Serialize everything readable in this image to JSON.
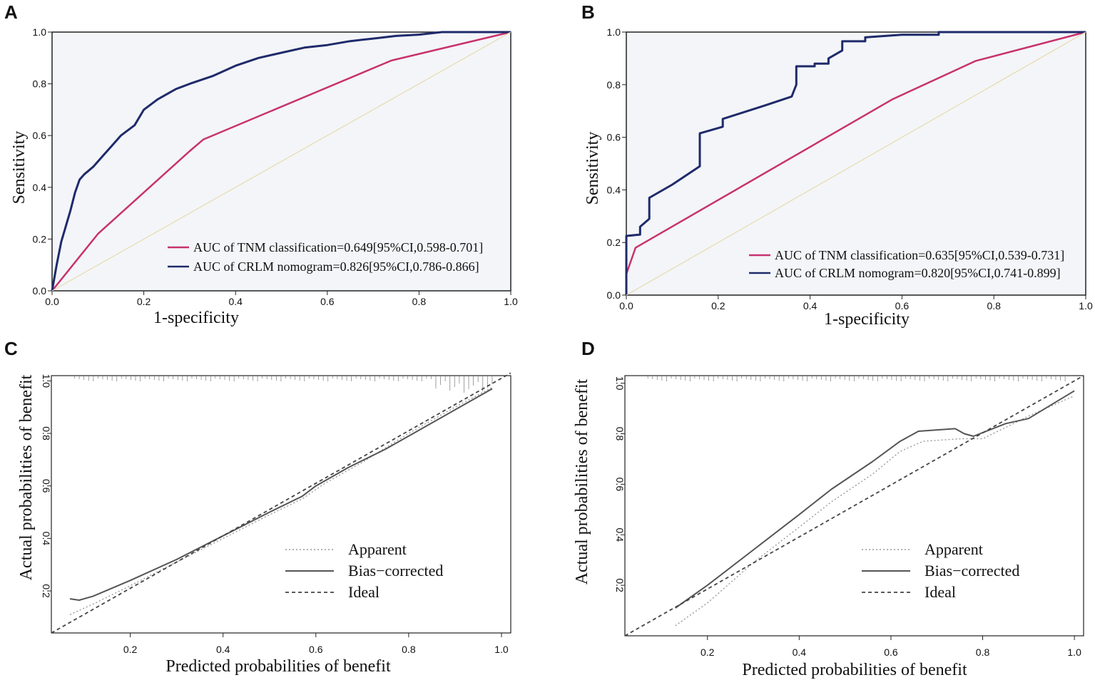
{
  "chart_data": [
    {
      "panel": "A",
      "type": "line",
      "xlabel": "1-specificity",
      "ylabel": "Sensitivity",
      "xlim": [
        0,
        1
      ],
      "ylim": [
        0,
        1
      ],
      "xticks": [
        "0.0",
        "0.2",
        "0.4",
        "0.6",
        "0.8",
        "1.0"
      ],
      "yticks": [
        "0.0",
        "0.2",
        "0.4",
        "0.6",
        "0.8",
        "1.0"
      ],
      "legend_position": "bottom-right",
      "colors": {
        "tnm": "#c8326e",
        "crlm": "#1f2a6b",
        "ref": "#e6dcae",
        "bg": "#f3f5f8"
      },
      "series": [
        {
          "name": "AUC of TNM classification=0.649[95%CI,0.598-0.701]",
          "key": "tnm",
          "x": [
            0,
            0.1,
            0.3,
            0.33,
            0.74,
            1.0
          ],
          "y": [
            0,
            0.22,
            0.54,
            0.585,
            0.89,
            1.0
          ]
        },
        {
          "name": "AUC of CRLM nomogram=0.826[95%CI,0.786-0.866]",
          "key": "crlm",
          "x": [
            0,
            0.01,
            0.02,
            0.03,
            0.04,
            0.05,
            0.06,
            0.07,
            0.09,
            0.11,
            0.13,
            0.15,
            0.18,
            0.2,
            0.23,
            0.27,
            0.3,
            0.35,
            0.4,
            0.45,
            0.5,
            0.55,
            0.6,
            0.65,
            0.7,
            0.75,
            0.8,
            0.85,
            0.9,
            0.95,
            1.0
          ],
          "y": [
            0,
            0.1,
            0.19,
            0.25,
            0.31,
            0.38,
            0.43,
            0.45,
            0.48,
            0.52,
            0.56,
            0.6,
            0.64,
            0.7,
            0.74,
            0.78,
            0.8,
            0.83,
            0.87,
            0.9,
            0.92,
            0.94,
            0.95,
            0.965,
            0.975,
            0.985,
            0.99,
            1.0,
            1.0,
            1.0,
            1.0
          ]
        },
        {
          "name": "reference",
          "key": "ref",
          "x": [
            0,
            1
          ],
          "y": [
            0,
            1
          ]
        }
      ]
    },
    {
      "panel": "B",
      "type": "line",
      "xlabel": "1-specificity",
      "ylabel": "Sensitivity",
      "xlim": [
        0,
        1
      ],
      "ylim": [
        0,
        1
      ],
      "xticks": [
        "0.0",
        "0.2",
        "0.4",
        "0.6",
        "0.8",
        "1.0"
      ],
      "yticks": [
        "0.0",
        "0.2",
        "0.4",
        "0.6",
        "0.8",
        "1.0"
      ],
      "legend_position": "bottom-right",
      "colors": {
        "tnm": "#c8326e",
        "crlm": "#1f2a6b",
        "ref": "#e6dcae",
        "bg": "#f3f5f8"
      },
      "series": [
        {
          "name": "AUC of TNM classification=0.635[95%CI,0.539-0.731]",
          "key": "tnm",
          "x": [
            0,
            0.02,
            0.58,
            0.76,
            1.0
          ],
          "y": [
            0.08,
            0.18,
            0.745,
            0.89,
            1.0
          ]
        },
        {
          "name": "AUC of CRLM nomogram=0.820[95%CI,0.741-0.899]",
          "key": "crlm",
          "x": [
            0,
            0,
            0.03,
            0.03,
            0.05,
            0.05,
            0.1,
            0.16,
            0.16,
            0.21,
            0.21,
            0.3,
            0.36,
            0.37,
            0.37,
            0.41,
            0.41,
            0.44,
            0.44,
            0.47,
            0.47,
            0.52,
            0.52,
            0.6,
            0.68,
            0.68,
            1.0
          ],
          "y": [
            0,
            0.225,
            0.23,
            0.26,
            0.29,
            0.37,
            0.42,
            0.49,
            0.615,
            0.64,
            0.67,
            0.72,
            0.755,
            0.8,
            0.87,
            0.87,
            0.88,
            0.88,
            0.9,
            0.93,
            0.965,
            0.965,
            0.98,
            0.99,
            0.99,
            1.0,
            1.0
          ]
        },
        {
          "name": "reference",
          "key": "ref",
          "x": [
            0,
            1
          ],
          "y": [
            0,
            1
          ]
        }
      ]
    },
    {
      "panel": "C",
      "type": "line",
      "xlabel": "Predicted probabilities of benefit",
      "ylabel": "Actual probabilities of benefit",
      "xlim": [
        0.03,
        1.02
      ],
      "ylim": [
        0.04,
        1.02
      ],
      "xticks": [
        "0.2",
        "0.4",
        "0.6",
        "0.8",
        "1.0"
      ],
      "yticks": [
        "0.2",
        "0.4",
        "0.6",
        "0.8",
        "1.0"
      ],
      "legend_position": "bottom-right",
      "colors": {
        "line": "#555555",
        "ideal": "#444444",
        "apparent": "#999999"
      },
      "series": [
        {
          "name": "Apparent",
          "key": "apparent",
          "x": [
            0.07,
            0.12,
            0.2,
            0.3,
            0.4,
            0.5,
            0.57,
            0.62,
            0.7,
            0.8,
            0.9,
            0.98
          ],
          "y": [
            0.11,
            0.15,
            0.22,
            0.31,
            0.4,
            0.49,
            0.55,
            0.61,
            0.69,
            0.8,
            0.9,
            0.975
          ]
        },
        {
          "name": "Bias−corrected",
          "key": "bias",
          "x": [
            0.07,
            0.09,
            0.12,
            0.2,
            0.3,
            0.4,
            0.5,
            0.57,
            0.6,
            0.67,
            0.75,
            0.8,
            0.9,
            0.98
          ],
          "y": [
            0.17,
            0.165,
            0.18,
            0.24,
            0.32,
            0.41,
            0.5,
            0.56,
            0.6,
            0.67,
            0.74,
            0.79,
            0.89,
            0.97
          ]
        },
        {
          "name": "Ideal",
          "key": "ideal",
          "x": [
            0.03,
            1.02
          ],
          "y": [
            0.04,
            1.03
          ]
        }
      ]
    },
    {
      "panel": "D",
      "type": "line",
      "xlabel": "Predicted probabilities of benefit",
      "ylabel": "Actual probabilities of benefit",
      "xlim": [
        0.02,
        1.02
      ],
      "ylim": [
        0.0,
        1.03
      ],
      "xticks": [
        "0.2",
        "0.4",
        "0.6",
        "0.8",
        "1.0"
      ],
      "yticks": [
        "0.2",
        "0.4",
        "0.6",
        "0.8",
        "1.0"
      ],
      "legend_position": "bottom-right",
      "colors": {
        "line": "#555555",
        "ideal": "#444444",
        "apparent": "#999999"
      },
      "series": [
        {
          "name": "Apparent",
          "key": "apparent",
          "x": [
            0.13,
            0.2,
            0.3,
            0.4,
            0.47,
            0.56,
            0.62,
            0.67,
            0.75,
            0.8,
            0.9,
            1.0
          ],
          "y": [
            0.04,
            0.13,
            0.29,
            0.43,
            0.53,
            0.64,
            0.73,
            0.77,
            0.78,
            0.78,
            0.87,
            0.95
          ]
        },
        {
          "name": "Bias−corrected",
          "key": "bias",
          "x": [
            0.13,
            0.2,
            0.3,
            0.4,
            0.47,
            0.56,
            0.62,
            0.66,
            0.74,
            0.76,
            0.78,
            0.85,
            0.9,
            1.0
          ],
          "y": [
            0.11,
            0.2,
            0.34,
            0.48,
            0.58,
            0.69,
            0.77,
            0.81,
            0.82,
            0.8,
            0.79,
            0.84,
            0.86,
            0.97
          ]
        },
        {
          "name": "Ideal",
          "key": "ideal",
          "x": [
            0.02,
            1.02
          ],
          "y": [
            0.0,
            1.03
          ]
        }
      ]
    }
  ]
}
